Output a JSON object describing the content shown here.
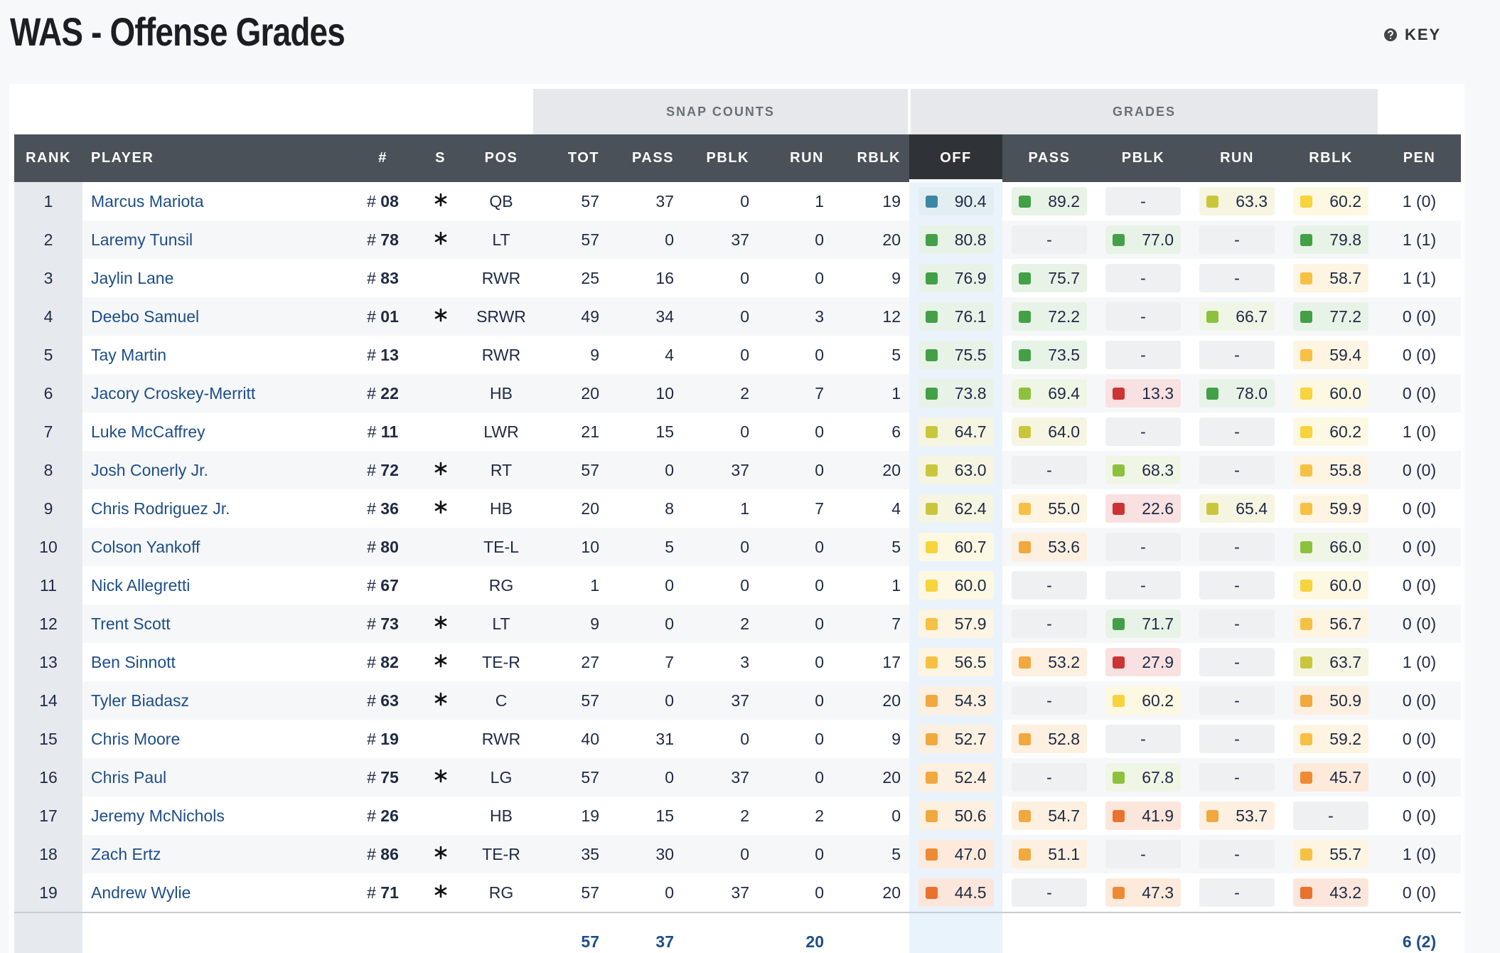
{
  "header": {
    "title": "WAS - Offense Grades",
    "key": "KEY"
  },
  "table": {
    "groups": [
      "SNAP COUNTS",
      "GRADES"
    ],
    "columns": [
      "RANK",
      "PLAYER",
      "#",
      "S",
      "POS",
      "TOT",
      "PASS",
      "PBLK",
      "RUN",
      "RBLK",
      "OFF",
      "PASS",
      "PBLK",
      "RUN",
      "RBLK",
      "PEN"
    ],
    "num_prefix": "#",
    "rows": [
      [
        1,
        "Marcus Mariota",
        "08",
        true,
        "QB",
        57,
        37,
        0,
        1,
        19,
        "90.4",
        "89.2",
        "-",
        "63.3",
        "60.2",
        "1 (0)"
      ],
      [
        2,
        "Laremy Tunsil",
        "78",
        true,
        "LT",
        57,
        0,
        37,
        0,
        20,
        "80.8",
        "-",
        "77.0",
        "-",
        "79.8",
        "1 (1)"
      ],
      [
        3,
        "Jaylin Lane",
        "83",
        false,
        "RWR",
        25,
        16,
        0,
        0,
        9,
        "76.9",
        "75.7",
        "-",
        "-",
        "58.7",
        "1 (1)"
      ],
      [
        4,
        "Deebo Samuel",
        "01",
        true,
        "SRWR",
        49,
        34,
        0,
        3,
        12,
        "76.1",
        "72.2",
        "-",
        "66.7",
        "77.2",
        "0 (0)"
      ],
      [
        5,
        "Tay Martin",
        "13",
        false,
        "RWR",
        9,
        4,
        0,
        0,
        5,
        "75.5",
        "73.5",
        "-",
        "-",
        "59.4",
        "0 (0)"
      ],
      [
        6,
        "Jacory Croskey-Merritt",
        "22",
        false,
        "HB",
        20,
        10,
        2,
        7,
        1,
        "73.8",
        "69.4",
        "13.3",
        "78.0",
        "60.0",
        "0 (0)"
      ],
      [
        7,
        "Luke McCaffrey",
        "11",
        false,
        "LWR",
        21,
        15,
        0,
        0,
        6,
        "64.7",
        "64.0",
        "-",
        "-",
        "60.2",
        "1 (0)"
      ],
      [
        8,
        "Josh Conerly Jr.",
        "72",
        true,
        "RT",
        57,
        0,
        37,
        0,
        20,
        "63.0",
        "-",
        "68.3",
        "-",
        "55.8",
        "0 (0)"
      ],
      [
        9,
        "Chris Rodriguez Jr.",
        "36",
        true,
        "HB",
        20,
        8,
        1,
        7,
        4,
        "62.4",
        "55.0",
        "22.6",
        "65.4",
        "59.9",
        "0 (0)"
      ],
      [
        10,
        "Colson Yankoff",
        "80",
        false,
        "TE-L",
        10,
        5,
        0,
        0,
        5,
        "60.7",
        "53.6",
        "-",
        "-",
        "66.0",
        "0 (0)"
      ],
      [
        11,
        "Nick Allegretti",
        "67",
        false,
        "RG",
        1,
        0,
        0,
        0,
        1,
        "60.0",
        "-",
        "-",
        "-",
        "60.0",
        "0 (0)"
      ],
      [
        12,
        "Trent Scott",
        "73",
        true,
        "LT",
        9,
        0,
        2,
        0,
        7,
        "57.9",
        "-",
        "71.7",
        "-",
        "56.7",
        "0 (0)"
      ],
      [
        13,
        "Ben Sinnott",
        "82",
        true,
        "TE-R",
        27,
        7,
        3,
        0,
        17,
        "56.5",
        "53.2",
        "27.9",
        "-",
        "63.7",
        "1 (0)"
      ],
      [
        14,
        "Tyler Biadasz",
        "63",
        true,
        "C",
        57,
        0,
        37,
        0,
        20,
        "54.3",
        "-",
        "60.2",
        "-",
        "50.9",
        "0 (0)"
      ],
      [
        15,
        "Chris Moore",
        "19",
        false,
        "RWR",
        40,
        31,
        0,
        0,
        9,
        "52.7",
        "52.8",
        "-",
        "-",
        "59.2",
        "0 (0)"
      ],
      [
        16,
        "Chris Paul",
        "75",
        true,
        "LG",
        57,
        0,
        37,
        0,
        20,
        "52.4",
        "-",
        "67.8",
        "-",
        "45.7",
        "0 (0)"
      ],
      [
        17,
        "Jeremy McNichols",
        "26",
        false,
        "HB",
        19,
        15,
        2,
        2,
        0,
        "50.6",
        "54.7",
        "41.9",
        "53.7",
        "-",
        "0 (0)"
      ],
      [
        18,
        "Zach Ertz",
        "86",
        true,
        "TE-R",
        35,
        30,
        0,
        0,
        5,
        "47.0",
        "51.1",
        "-",
        "-",
        "55.7",
        "1 (0)"
      ],
      [
        19,
        "Andrew Wylie",
        "71",
        true,
        "RG",
        57,
        0,
        37,
        0,
        20,
        "44.5",
        "-",
        "47.3",
        "-",
        "43.2",
        "0 (0)"
      ]
    ],
    "totals": {
      "tot": 57,
      "pass": 37,
      "run": 20,
      "pen": "6 (2)"
    }
  }
}
